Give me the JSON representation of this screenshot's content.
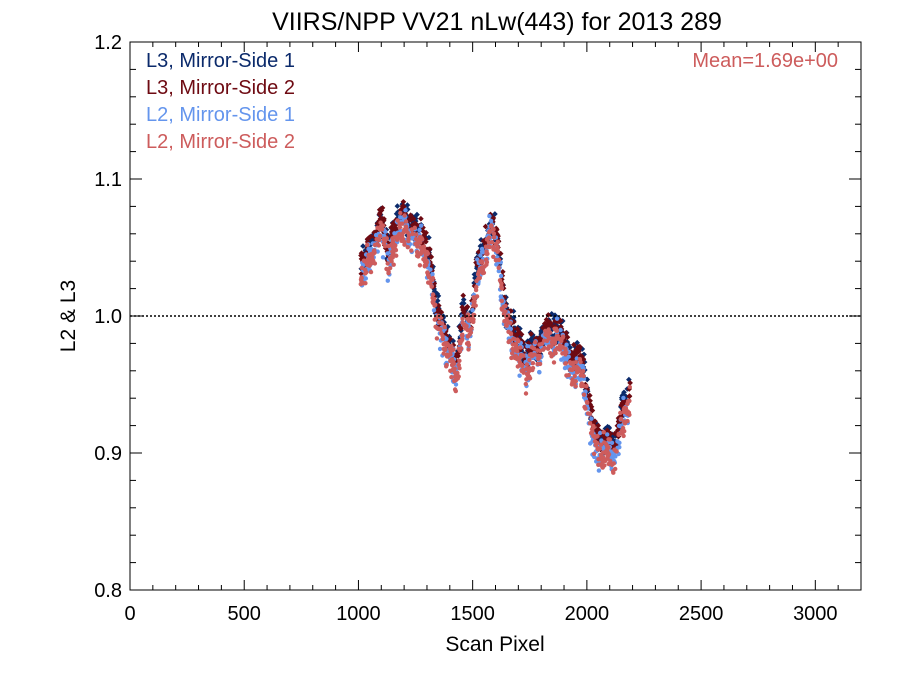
{
  "chart_data": {
    "type": "scatter",
    "title": "VIIRS/NPP VV21 nLw(443) for 2013 289",
    "xlabel": "Scan Pixel",
    "ylabel": "L2 & L3",
    "xlim": [
      0,
      3200
    ],
    "ylim": [
      0.8,
      1.2
    ],
    "xticks": [
      0,
      500,
      1000,
      1500,
      2000,
      2500,
      3000
    ],
    "xtick_labels": [
      "0",
      "500",
      "1000",
      "1500",
      "2000",
      "2500",
      "3000"
    ],
    "yticks": [
      0.8,
      0.9,
      1.0,
      1.1,
      1.2
    ],
    "ytick_labels": [
      "0.8",
      "0.9",
      "1.0",
      "1.1",
      "1.2"
    ],
    "reference_line": 1.0,
    "annotation": "Mean=1.69e+00",
    "annotation_color": "#cd5c5c",
    "legend_position": "top-left",
    "grid": false,
    "profile": {
      "x": [
        1010,
        1040,
        1070,
        1100,
        1130,
        1160,
        1190,
        1220,
        1250,
        1280,
        1310,
        1340,
        1370,
        1400,
        1430,
        1460,
        1490,
        1520,
        1550,
        1580,
        1610,
        1640,
        1670,
        1700,
        1730,
        1760,
        1790,
        1820,
        1850,
        1880,
        1910,
        1940,
        1970,
        2000,
        2030,
        2060,
        2090,
        2120,
        2150,
        2190
      ],
      "y": [
        1.035,
        1.045,
        1.052,
        1.07,
        1.045,
        1.062,
        1.072,
        1.065,
        1.06,
        1.057,
        1.04,
        1.005,
        0.99,
        0.975,
        0.96,
        1.005,
        0.99,
        1.035,
        1.045,
        1.068,
        1.05,
        1.005,
        0.99,
        0.98,
        0.965,
        0.975,
        0.975,
        0.99,
        0.985,
        0.99,
        0.975,
        0.965,
        0.97,
        0.945,
        0.915,
        0.905,
        0.91,
        0.9,
        0.925,
        0.945
      ]
    },
    "series": [
      {
        "name": "L3, Mirror-Side 1",
        "color": "#0b2a6b",
        "offset": 0.004,
        "spread": 0.016,
        "count": 520
      },
      {
        "name": "L3, Mirror-Side 2",
        "color": "#6e0a12",
        "offset": 0.003,
        "spread": 0.014,
        "count": 560
      },
      {
        "name": "L2, Mirror-Side 1",
        "color": "#6495ed",
        "offset": -0.006,
        "spread": 0.02,
        "count": 520
      },
      {
        "name": "L2, Mirror-Side 2",
        "color": "#cd5c5c",
        "offset": -0.007,
        "spread": 0.018,
        "count": 620
      }
    ]
  }
}
